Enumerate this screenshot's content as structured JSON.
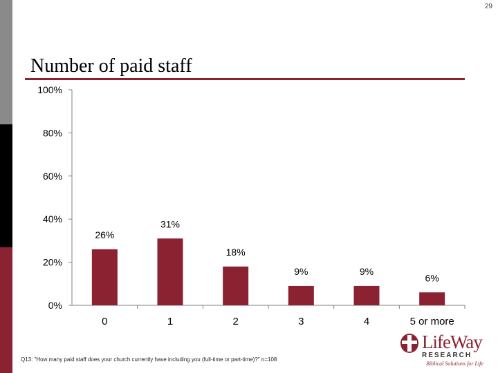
{
  "page": {
    "number": "29"
  },
  "title": "Number of paid staff",
  "footnote": "Q13: \"How many paid staff does your church currently have including you (full-time or part-time)?\" n=108",
  "logo": {
    "name": "LifeWay",
    "subtitle": "RESEARCH",
    "tagline": "Biblical Solutions for Life"
  },
  "colors": {
    "bar": "#8b2232",
    "accent": "#8b2232"
  },
  "chart_data": {
    "type": "bar",
    "title": "Number of paid staff",
    "xlabel": "",
    "ylabel": "",
    "categories": [
      "0",
      "1",
      "2",
      "3",
      "4",
      "5 or more"
    ],
    "values": [
      26,
      31,
      18,
      9,
      9,
      6
    ],
    "data_labels": [
      "26%",
      "31%",
      "18%",
      "9%",
      "9%",
      "6%"
    ],
    "ylim": [
      0,
      100
    ],
    "yticks": [
      0,
      20,
      40,
      60,
      80,
      100
    ],
    "ytick_labels": [
      "0%",
      "20%",
      "40%",
      "60%",
      "80%",
      "100%"
    ],
    "grid": false,
    "legend": "none"
  }
}
